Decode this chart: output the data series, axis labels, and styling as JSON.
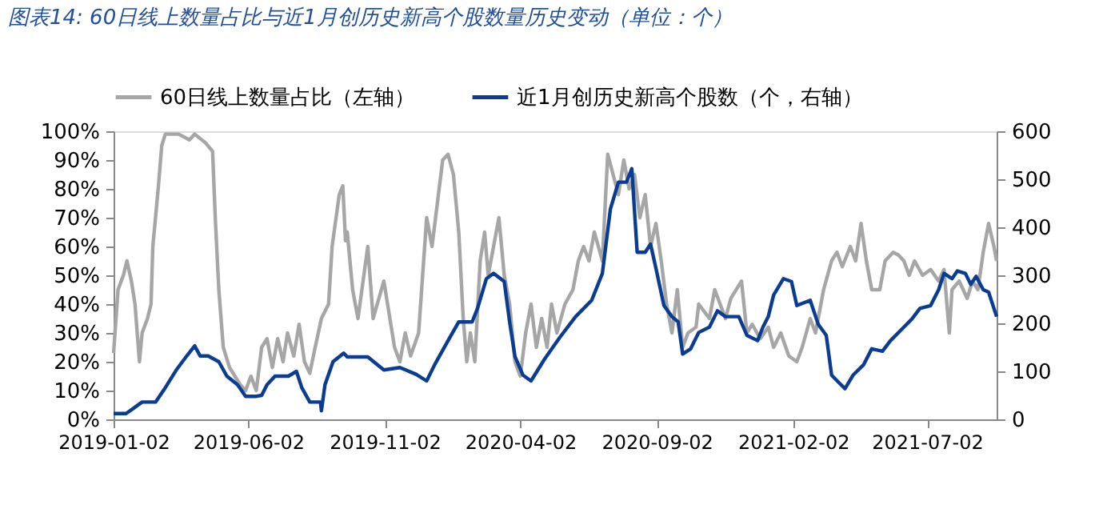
{
  "chart_data": {
    "type": "line",
    "title": "图表14: 60日线上数量占比与近1月创历史新高个股数量历史变动（单位：个）",
    "xlim": [
      "2019-01-02",
      "2021-09-18"
    ],
    "xticks": [
      "2019-01-02",
      "2019-06-02",
      "2019-11-02",
      "2020-04-02",
      "2020-09-02",
      "2021-02-02",
      "2021-07-02"
    ],
    "ylim": [
      0,
      100
    ],
    "yticks": [
      {
        "value": 0,
        "label": "0%"
      },
      {
        "value": 10,
        "label": "10%"
      },
      {
        "value": 20,
        "label": "20%"
      },
      {
        "value": 30,
        "label": "30%"
      },
      {
        "value": 40,
        "label": "40%"
      },
      {
        "value": 50,
        "label": "50%"
      },
      {
        "value": 60,
        "label": "60%"
      },
      {
        "value": 70,
        "label": "70%"
      },
      {
        "value": 80,
        "label": "80%"
      },
      {
        "value": 90,
        "label": "90%"
      },
      {
        "value": 100,
        "label": "100%"
      }
    ],
    "y2lim": [
      0,
      600
    ],
    "y2ticks": [
      0,
      100,
      200,
      300,
      400,
      500,
      600
    ],
    "grid": false,
    "legend": "top",
    "marker": "none",
    "line_style": "solid",
    "series": [
      {
        "name": "60日线上数量占比（左轴）",
        "color": "#a6a6a6",
        "x": [
          "2019-01-02",
          "2019-01-07",
          "2019-01-13",
          "2019-01-17",
          "2019-01-22",
          "2019-01-26",
          "2019-01-31",
          "2019-02-03",
          "2019-02-09",
          "2019-02-13",
          "2019-02-15",
          "2019-02-21",
          "2019-02-25",
          "2019-03-01",
          "2019-03-16",
          "2019-03-28",
          "2019-04-03",
          "2019-04-15",
          "2019-04-23",
          "2019-04-26",
          "2019-04-30",
          "2019-05-05",
          "2019-05-12",
          "2019-05-18",
          "2019-05-24",
          "2019-05-30",
          "2019-06-05",
          "2019-06-11",
          "2019-06-17",
          "2019-06-23",
          "2019-06-29",
          "2019-07-05",
          "2019-07-11",
          "2019-07-16",
          "2019-07-23",
          "2019-07-29",
          "2019-08-04",
          "2019-08-10",
          "2019-08-16",
          "2019-08-23",
          "2019-08-31",
          "2019-09-04",
          "2019-09-12",
          "2019-09-16",
          "2019-09-19",
          "2019-09-21",
          "2019-09-27",
          "2019-10-03",
          "2019-10-14",
          "2019-10-20",
          "2019-11-01",
          "2019-11-13",
          "2019-11-19",
          "2019-11-25",
          "2019-12-01",
          "2019-12-10",
          "2019-12-19",
          "2019-12-25",
          "2019-12-31",
          "2020-01-06",
          "2020-01-12",
          "2020-01-18",
          "2020-01-24",
          "2020-01-29",
          "2020-02-02",
          "2020-02-06",
          "2020-02-11",
          "2020-02-17",
          "2020-02-22",
          "2020-02-26",
          "2020-03-03",
          "2020-03-09",
          "2020-03-15",
          "2020-03-21",
          "2020-03-27",
          "2020-04-02",
          "2020-04-08",
          "2020-04-14",
          "2020-04-20",
          "2020-04-26",
          "2020-05-02",
          "2020-05-07",
          "2020-05-13",
          "2020-05-22",
          "2020-05-31",
          "2020-06-06",
          "2020-06-12",
          "2020-06-18",
          "2020-06-24",
          "2020-07-03",
          "2020-07-09",
          "2020-07-15",
          "2020-07-21",
          "2020-07-27",
          "2020-08-02",
          "2020-08-08",
          "2020-08-14",
          "2020-08-20",
          "2020-08-26",
          "2020-09-01",
          "2020-09-07",
          "2020-09-13",
          "2020-09-19",
          "2020-09-25",
          "2020-10-01",
          "2020-10-07",
          "2020-10-16",
          "2020-10-19",
          "2020-10-31",
          "2020-11-06",
          "2020-11-18",
          "2020-11-24",
          "2020-12-06",
          "2020-12-12",
          "2020-12-18",
          "2020-12-27",
          "2021-01-05",
          "2021-01-11",
          "2021-01-19",
          "2021-01-28",
          "2021-02-06",
          "2021-02-12",
          "2021-02-21",
          "2021-02-27",
          "2021-03-08",
          "2021-03-17",
          "2021-03-23",
          "2021-03-29",
          "2021-04-07",
          "2021-04-13",
          "2021-04-19",
          "2021-04-25",
          "2021-05-01",
          "2021-05-10",
          "2021-05-16",
          "2021-05-25",
          "2021-05-31",
          "2021-06-06",
          "2021-06-12",
          "2021-06-18",
          "2021-06-27",
          "2021-07-06",
          "2021-07-15",
          "2021-07-21",
          "2021-07-27",
          "2021-07-30",
          "2021-08-07",
          "2021-08-16",
          "2021-08-22",
          "2021-08-28",
          "2021-09-03",
          "2021-09-09",
          "2021-09-15",
          "2021-09-18"
        ],
        "values": [
          23,
          45,
          50,
          55,
          48,
          40,
          20,
          30,
          35,
          40,
          60,
          80,
          95,
          99,
          99,
          97,
          99,
          96,
          93,
          70,
          45,
          25,
          18,
          15,
          12,
          10,
          15,
          10,
          25,
          28,
          18,
          28,
          20,
          30,
          22,
          33,
          20,
          16,
          25,
          35,
          40,
          60,
          78,
          81,
          62,
          65,
          45,
          35,
          60,
          35,
          48,
          25,
          20,
          30,
          22,
          30,
          70,
          60,
          75,
          90,
          92,
          85,
          65,
          35,
          20,
          30,
          20,
          55,
          65,
          50,
          60,
          70,
          50,
          40,
          20,
          15,
          30,
          40,
          25,
          35,
          25,
          40,
          30,
          40,
          45,
          55,
          60,
          55,
          65,
          55,
          92,
          85,
          78,
          90,
          80,
          85,
          70,
          78,
          60,
          68,
          55,
          40,
          30,
          45,
          25,
          30,
          32,
          40,
          35,
          45,
          35,
          42,
          48,
          30,
          33,
          28,
          32,
          25,
          30,
          22,
          20,
          25,
          35,
          30,
          45,
          55,
          58,
          53,
          60,
          55,
          68,
          55,
          45,
          45,
          55,
          58,
          57,
          55,
          50,
          55,
          50,
          52,
          48,
          52,
          30,
          45,
          48,
          42,
          48,
          45,
          58,
          68,
          60,
          55
        ]
      },
      {
        "name": "近1月创历史新高个股数（个，右轴）",
        "color": "#0a3d91",
        "axis": "y2",
        "x": [
          "2019-01-02",
          "2019-01-16",
          "2019-01-25",
          "2019-02-03",
          "2019-02-18",
          "2019-03-01",
          "2019-03-13",
          "2019-03-25",
          "2019-04-03",
          "2019-04-09",
          "2019-04-18",
          "2019-04-30",
          "2019-05-09",
          "2019-05-21",
          "2019-05-30",
          "2019-06-11",
          "2019-06-17",
          "2019-06-23",
          "2019-07-02",
          "2019-07-17",
          "2019-07-26",
          "2019-08-01",
          "2019-08-10",
          "2019-08-22",
          "2019-08-23",
          "2019-08-27",
          "2019-09-05",
          "2019-09-17",
          "2019-09-21",
          "2019-10-14",
          "2019-11-01",
          "2019-11-19",
          "2019-12-07",
          "2019-12-19",
          "2019-12-28",
          "2020-01-12",
          "2020-01-24",
          "2020-02-08",
          "2020-02-14",
          "2020-02-24",
          "2020-03-03",
          "2020-03-15",
          "2020-03-21",
          "2020-03-27",
          "2020-04-05",
          "2020-04-14",
          "2020-04-29",
          "2020-05-16",
          "2020-06-03",
          "2020-06-21",
          "2020-07-03",
          "2020-07-12",
          "2020-07-21",
          "2020-07-30",
          "2020-08-05",
          "2020-08-11",
          "2020-08-20",
          "2020-08-26",
          "2020-09-01",
          "2020-09-10",
          "2020-09-19",
          "2020-09-26",
          "2020-10-01",
          "2020-10-10",
          "2020-10-19",
          "2020-10-31",
          "2020-11-09",
          "2020-11-18",
          "2020-12-03",
          "2020-12-12",
          "2020-12-24",
          "2020-12-30",
          "2021-01-05",
          "2021-01-11",
          "2021-01-22",
          "2021-01-31",
          "2021-02-06",
          "2021-02-21",
          "2021-03-02",
          "2021-03-11",
          "2021-03-17",
          "2021-03-26",
          "2021-04-01",
          "2021-04-10",
          "2021-04-22",
          "2021-05-01",
          "2021-05-13",
          "2021-05-22",
          "2021-06-06",
          "2021-06-15",
          "2021-06-24",
          "2021-07-06",
          "2021-07-15",
          "2021-07-21",
          "2021-07-30",
          "2021-08-05",
          "2021-08-14",
          "2021-08-20",
          "2021-08-26",
          "2021-09-03",
          "2021-09-09",
          "2021-09-18"
        ],
        "values": [
          12,
          12,
          24,
          36,
          36,
          66,
          102,
          132,
          153,
          132,
          132,
          120,
          90,
          72,
          48,
          48,
          50,
          72,
          90,
          90,
          100,
          66,
          36,
          36,
          18,
          72,
          120,
          138,
          130,
          130,
          103,
          108,
          94,
          80,
          114,
          164,
          203,
          203,
          231,
          293,
          304,
          287,
          203,
          131,
          92,
          80,
          125,
          170,
          214,
          248,
          304,
          438,
          494,
          494,
          522,
          348,
          348,
          365,
          315,
          237,
          214,
          203,
          136,
          147,
          181,
          192,
          226,
          214,
          214,
          175,
          164,
          192,
          214,
          259,
          293,
          287,
          237,
          248,
          198,
          175,
          92,
          75,
          64,
          92,
          114,
          147,
          142,
          164,
          192,
          209,
          231,
          237,
          270,
          304,
          293,
          309,
          304,
          281,
          298,
          270,
          265,
          214
        ]
      }
    ]
  }
}
